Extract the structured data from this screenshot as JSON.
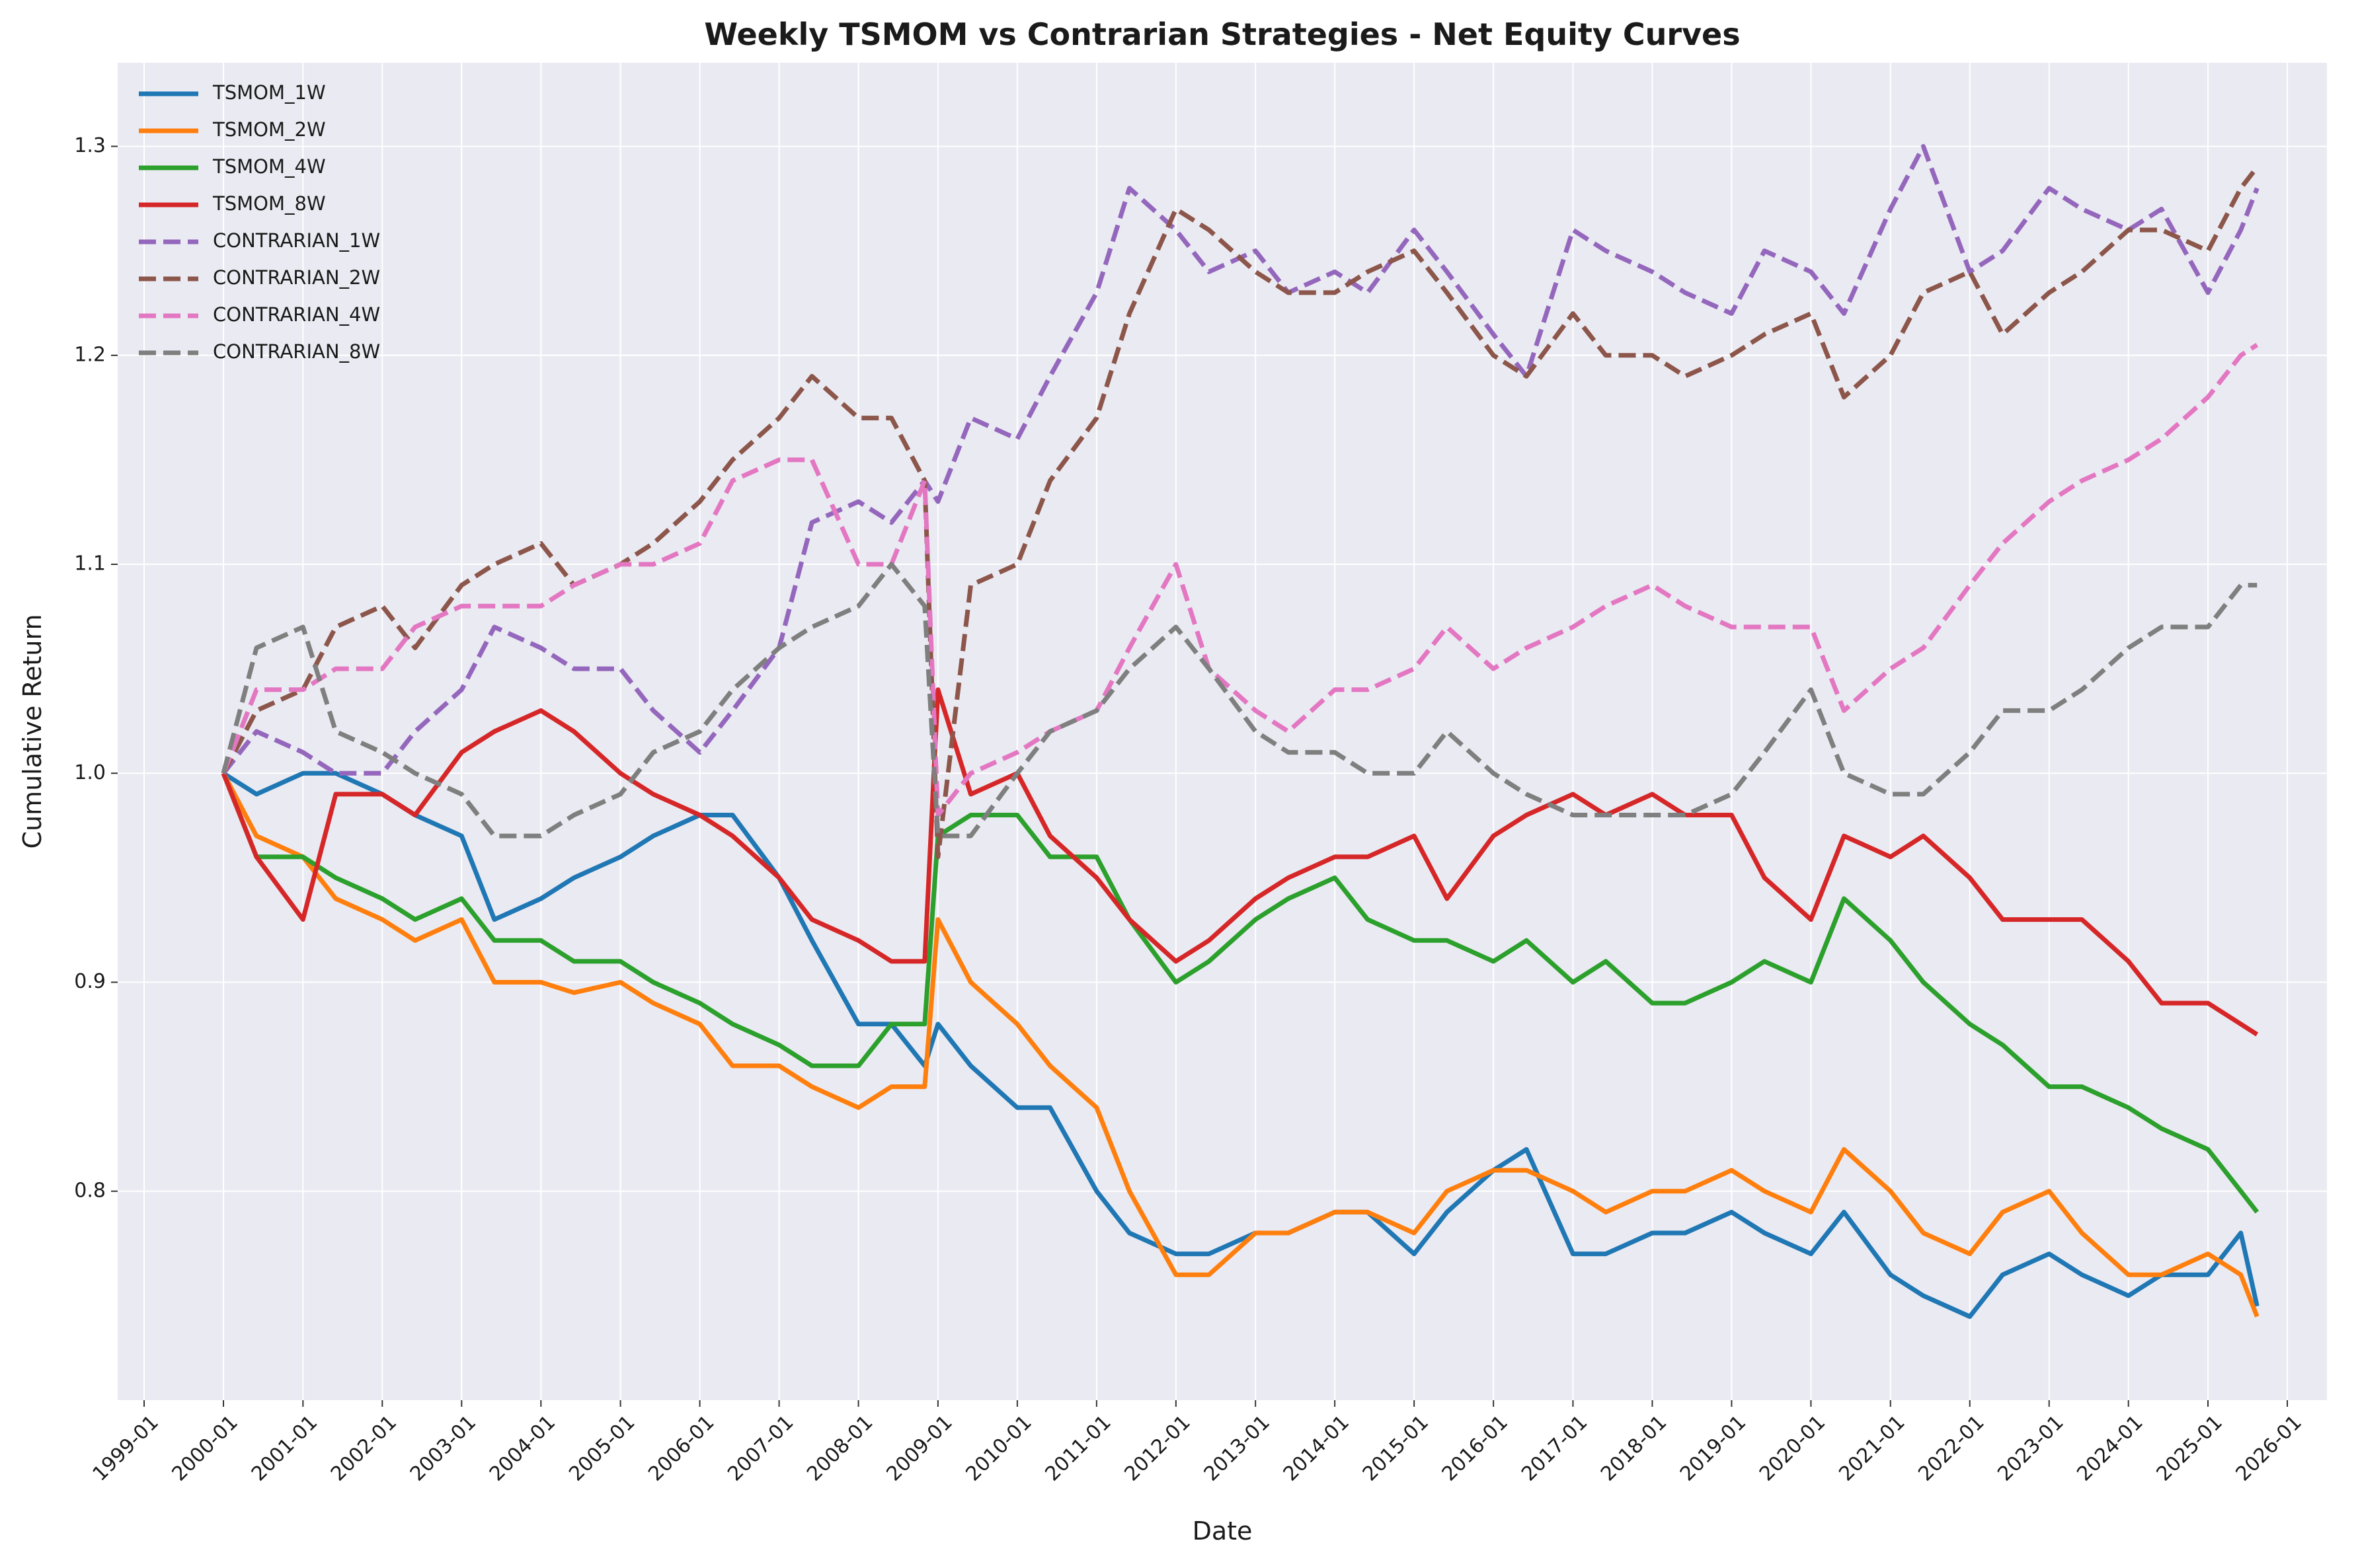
{
  "chart_data": {
    "type": "line",
    "title": "Weekly TSMOM vs Contrarian Strategies - Net Equity Curves",
    "xlabel": "Date",
    "ylabel": "Cumulative Return",
    "x_range": [
      "1999-01-01",
      "2026-01-01"
    ],
    "ylim": [
      0.7,
      1.34
    ],
    "x_ticks": [
      "1999-01",
      "2000-01",
      "2001-01",
      "2002-01",
      "2003-01",
      "2004-01",
      "2005-01",
      "2006-01",
      "2007-01",
      "2008-01",
      "2009-01",
      "2010-01",
      "2011-01",
      "2012-01",
      "2013-01",
      "2014-01",
      "2015-01",
      "2016-01",
      "2017-01",
      "2018-01",
      "2019-01",
      "2020-01",
      "2021-01",
      "2022-01",
      "2023-01",
      "2024-01",
      "2025-01",
      "2026-01"
    ],
    "y_ticks": [
      "0.8",
      "0.9",
      "1.0",
      "1.1",
      "1.2",
      "1.3"
    ],
    "grid": true,
    "legend_position": "top-left",
    "series": [
      {
        "name": "TSMOM_1W",
        "color": "#1f77b4",
        "dash": "solid",
        "x": [
          "2000-01-01",
          "2000-06-01",
          "2001-01-01",
          "2001-06-01",
          "2002-01-01",
          "2002-06-01",
          "2003-01-01",
          "2003-06-01",
          "2004-01-01",
          "2004-06-01",
          "2005-01-01",
          "2005-06-01",
          "2006-01-01",
          "2006-06-01",
          "2007-01-01",
          "2007-06-01",
          "2008-01-01",
          "2008-06-01",
          "2008-11-01",
          "2009-01-01",
          "2009-06-01",
          "2010-01-01",
          "2010-06-01",
          "2011-01-01",
          "2011-06-01",
          "2012-01-01",
          "2012-06-01",
          "2013-01-01",
          "2013-06-01",
          "2014-01-01",
          "2014-06-01",
          "2015-01-01",
          "2015-06-01",
          "2016-01-01",
          "2016-06-01",
          "2017-01-01",
          "2017-06-01",
          "2018-01-01",
          "2018-06-01",
          "2019-01-01",
          "2019-06-01",
          "2020-01-01",
          "2020-06-01",
          "2021-01-01",
          "2021-06-01",
          "2022-01-01",
          "2022-06-01",
          "2023-01-01",
          "2023-06-01",
          "2024-01-01",
          "2024-06-01",
          "2025-01-01",
          "2025-06-01",
          "2025-08-15"
        ],
        "y": [
          1.0,
          0.99,
          1.0,
          1.0,
          0.99,
          0.98,
          0.97,
          0.93,
          0.94,
          0.95,
          0.96,
          0.97,
          0.98,
          0.98,
          0.95,
          0.92,
          0.88,
          0.88,
          0.86,
          0.88,
          0.86,
          0.84,
          0.84,
          0.8,
          0.78,
          0.77,
          0.77,
          0.78,
          0.78,
          0.79,
          0.79,
          0.77,
          0.79,
          0.81,
          0.82,
          0.77,
          0.77,
          0.78,
          0.78,
          0.79,
          0.78,
          0.77,
          0.79,
          0.76,
          0.75,
          0.74,
          0.76,
          0.77,
          0.76,
          0.75,
          0.76,
          0.76,
          0.78,
          0.745
        ]
      },
      {
        "name": "TSMOM_2W",
        "color": "#ff7f0e",
        "dash": "solid",
        "x": [
          "2000-01-01",
          "2000-06-01",
          "2001-01-01",
          "2001-06-01",
          "2002-01-01",
          "2002-06-01",
          "2003-01-01",
          "2003-06-01",
          "2004-01-01",
          "2004-06-01",
          "2005-01-01",
          "2005-06-01",
          "2006-01-01",
          "2006-06-01",
          "2007-01-01",
          "2007-06-01",
          "2008-01-01",
          "2008-06-01",
          "2008-11-01",
          "2009-01-01",
          "2009-06-01",
          "2010-01-01",
          "2010-06-01",
          "2011-01-01",
          "2011-06-01",
          "2012-01-01",
          "2012-06-01",
          "2013-01-01",
          "2013-06-01",
          "2014-01-01",
          "2014-06-01",
          "2015-01-01",
          "2015-06-01",
          "2016-01-01",
          "2016-06-01",
          "2017-01-01",
          "2017-06-01",
          "2018-01-01",
          "2018-06-01",
          "2019-01-01",
          "2019-06-01",
          "2020-01-01",
          "2020-06-01",
          "2021-01-01",
          "2021-06-01",
          "2022-01-01",
          "2022-06-01",
          "2023-01-01",
          "2023-06-01",
          "2024-01-01",
          "2024-06-01",
          "2025-01-01",
          "2025-06-01",
          "2025-08-15"
        ],
        "y": [
          1.0,
          0.97,
          0.96,
          0.94,
          0.93,
          0.92,
          0.93,
          0.9,
          0.9,
          0.895,
          0.9,
          0.89,
          0.88,
          0.86,
          0.86,
          0.85,
          0.84,
          0.85,
          0.85,
          0.93,
          0.9,
          0.88,
          0.86,
          0.84,
          0.8,
          0.76,
          0.76,
          0.78,
          0.78,
          0.79,
          0.79,
          0.78,
          0.8,
          0.81,
          0.81,
          0.8,
          0.79,
          0.8,
          0.8,
          0.81,
          0.8,
          0.79,
          0.82,
          0.8,
          0.78,
          0.77,
          0.79,
          0.8,
          0.78,
          0.76,
          0.76,
          0.77,
          0.76,
          0.74
        ]
      },
      {
        "name": "TSMOM_4W",
        "color": "#2ca02c",
        "dash": "solid",
        "x": [
          "2000-01-01",
          "2000-06-01",
          "2001-01-01",
          "2001-06-01",
          "2002-01-01",
          "2002-06-01",
          "2003-01-01",
          "2003-06-01",
          "2004-01-01",
          "2004-06-01",
          "2005-01-01",
          "2005-06-01",
          "2006-01-01",
          "2006-06-01",
          "2007-01-01",
          "2007-06-01",
          "2008-01-01",
          "2008-06-01",
          "2008-11-01",
          "2009-01-01",
          "2009-06-01",
          "2010-01-01",
          "2010-06-01",
          "2011-01-01",
          "2011-06-01",
          "2012-01-01",
          "2012-06-01",
          "2013-01-01",
          "2013-06-01",
          "2014-01-01",
          "2014-06-01",
          "2015-01-01",
          "2015-06-01",
          "2016-01-01",
          "2016-06-01",
          "2017-01-01",
          "2017-06-01",
          "2018-01-01",
          "2018-06-01",
          "2019-01-01",
          "2019-06-01",
          "2020-01-01",
          "2020-06-01",
          "2021-01-01",
          "2021-06-01",
          "2022-01-01",
          "2022-06-01",
          "2023-01-01",
          "2023-06-01",
          "2024-01-01",
          "2024-06-01",
          "2025-01-01",
          "2025-06-01",
          "2025-08-15"
        ],
        "y": [
          1.0,
          0.96,
          0.96,
          0.95,
          0.94,
          0.93,
          0.94,
          0.92,
          0.92,
          0.91,
          0.91,
          0.9,
          0.89,
          0.88,
          0.87,
          0.86,
          0.86,
          0.88,
          0.88,
          0.97,
          0.98,
          0.98,
          0.96,
          0.96,
          0.93,
          0.9,
          0.91,
          0.93,
          0.94,
          0.95,
          0.93,
          0.92,
          0.92,
          0.91,
          0.92,
          0.9,
          0.91,
          0.89,
          0.89,
          0.9,
          0.91,
          0.9,
          0.94,
          0.92,
          0.9,
          0.88,
          0.87,
          0.85,
          0.85,
          0.84,
          0.83,
          0.82,
          0.8,
          0.79
        ]
      },
      {
        "name": "TSMOM_8W",
        "color": "#d62728",
        "dash": "solid",
        "x": [
          "2000-01-01",
          "2000-06-01",
          "2001-01-01",
          "2001-06-01",
          "2002-01-01",
          "2002-06-01",
          "2003-01-01",
          "2003-06-01",
          "2004-01-01",
          "2004-06-01",
          "2005-01-01",
          "2005-06-01",
          "2006-01-01",
          "2006-06-01",
          "2007-01-01",
          "2007-06-01",
          "2008-01-01",
          "2008-06-01",
          "2008-11-01",
          "2009-01-01",
          "2009-06-01",
          "2010-01-01",
          "2010-06-01",
          "2011-01-01",
          "2011-06-01",
          "2012-01-01",
          "2012-06-01",
          "2013-01-01",
          "2013-06-01",
          "2014-01-01",
          "2014-06-01",
          "2015-01-01",
          "2015-06-01",
          "2016-01-01",
          "2016-06-01",
          "2017-01-01",
          "2017-06-01",
          "2018-01-01",
          "2018-06-01",
          "2019-01-01",
          "2019-06-01",
          "2020-01-01",
          "2020-06-01",
          "2021-01-01",
          "2021-06-01",
          "2022-01-01",
          "2022-06-01",
          "2023-01-01",
          "2023-06-01",
          "2024-01-01",
          "2024-06-01",
          "2025-01-01",
          "2025-06-01",
          "2025-08-15"
        ],
        "y": [
          1.0,
          0.96,
          0.93,
          0.99,
          0.99,
          0.98,
          1.01,
          1.02,
          1.03,
          1.02,
          1.0,
          0.99,
          0.98,
          0.97,
          0.95,
          0.93,
          0.92,
          0.91,
          0.91,
          1.04,
          0.99,
          1.0,
          0.97,
          0.95,
          0.93,
          0.91,
          0.92,
          0.94,
          0.95,
          0.96,
          0.96,
          0.97,
          0.94,
          0.97,
          0.98,
          0.99,
          0.98,
          0.99,
          0.98,
          0.98,
          0.95,
          0.93,
          0.97,
          0.96,
          0.97,
          0.95,
          0.93,
          0.93,
          0.93,
          0.91,
          0.89,
          0.89,
          0.88,
          0.875
        ]
      },
      {
        "name": "CONTRARIAN_1W",
        "color": "#9467bd",
        "dash": "dashed",
        "x": [
          "2000-01-01",
          "2000-06-01",
          "2001-01-01",
          "2001-06-01",
          "2002-01-01",
          "2002-06-01",
          "2003-01-01",
          "2003-06-01",
          "2004-01-01",
          "2004-06-01",
          "2005-01-01",
          "2005-06-01",
          "2006-01-01",
          "2006-06-01",
          "2007-01-01",
          "2007-06-01",
          "2008-01-01",
          "2008-06-01",
          "2008-11-01",
          "2009-01-01",
          "2009-06-01",
          "2010-01-01",
          "2010-06-01",
          "2011-01-01",
          "2011-06-01",
          "2012-01-01",
          "2012-06-01",
          "2013-01-01",
          "2013-06-01",
          "2014-01-01",
          "2014-06-01",
          "2015-01-01",
          "2015-06-01",
          "2016-01-01",
          "2016-06-01",
          "2017-01-01",
          "2017-06-01",
          "2018-01-01",
          "2018-06-01",
          "2019-01-01",
          "2019-06-01",
          "2020-01-01",
          "2020-06-01",
          "2021-01-01",
          "2021-06-01",
          "2022-01-01",
          "2022-06-01",
          "2023-01-01",
          "2023-06-01",
          "2024-01-01",
          "2024-06-01",
          "2025-01-01",
          "2025-06-01",
          "2025-08-15"
        ],
        "y": [
          1.0,
          1.02,
          1.01,
          1.0,
          1.0,
          1.02,
          1.04,
          1.07,
          1.06,
          1.05,
          1.05,
          1.03,
          1.01,
          1.03,
          1.06,
          1.12,
          1.13,
          1.12,
          1.14,
          1.13,
          1.17,
          1.16,
          1.19,
          1.23,
          1.28,
          1.26,
          1.24,
          1.25,
          1.23,
          1.24,
          1.23,
          1.26,
          1.24,
          1.21,
          1.19,
          1.26,
          1.25,
          1.24,
          1.23,
          1.22,
          1.25,
          1.24,
          1.22,
          1.27,
          1.3,
          1.24,
          1.25,
          1.28,
          1.27,
          1.26,
          1.27,
          1.23,
          1.26,
          1.28
        ]
      },
      {
        "name": "CONTRARIAN_2W",
        "color": "#8c564b",
        "dash": "dashed",
        "x": [
          "2000-01-01",
          "2000-06-01",
          "2001-01-01",
          "2001-06-01",
          "2002-01-01",
          "2002-06-01",
          "2003-01-01",
          "2003-06-01",
          "2004-01-01",
          "2004-06-01",
          "2005-01-01",
          "2005-06-01",
          "2006-01-01",
          "2006-06-01",
          "2007-01-01",
          "2007-06-01",
          "2008-01-01",
          "2008-06-01",
          "2008-11-01",
          "2009-01-01",
          "2009-06-01",
          "2010-01-01",
          "2010-06-01",
          "2011-01-01",
          "2011-06-01",
          "2012-01-01",
          "2012-06-01",
          "2013-01-01",
          "2013-06-01",
          "2014-01-01",
          "2014-06-01",
          "2015-01-01",
          "2015-06-01",
          "2016-01-01",
          "2016-06-01",
          "2017-01-01",
          "2017-06-01",
          "2018-01-01",
          "2018-06-01",
          "2019-01-01",
          "2019-06-01",
          "2020-01-01",
          "2020-06-01",
          "2021-01-01",
          "2021-06-01",
          "2022-01-01",
          "2022-06-01",
          "2023-01-01",
          "2023-06-01",
          "2024-01-01",
          "2024-06-01",
          "2025-01-01",
          "2025-06-01",
          "2025-08-15"
        ],
        "y": [
          1.0,
          1.03,
          1.04,
          1.07,
          1.08,
          1.06,
          1.09,
          1.1,
          1.11,
          1.09,
          1.1,
          1.11,
          1.13,
          1.15,
          1.17,
          1.19,
          1.17,
          1.17,
          1.14,
          0.96,
          1.09,
          1.1,
          1.14,
          1.17,
          1.22,
          1.27,
          1.26,
          1.24,
          1.23,
          1.23,
          1.24,
          1.25,
          1.23,
          1.2,
          1.19,
          1.22,
          1.2,
          1.2,
          1.19,
          1.2,
          1.21,
          1.22,
          1.18,
          1.2,
          1.23,
          1.24,
          1.21,
          1.23,
          1.24,
          1.26,
          1.26,
          1.25,
          1.28,
          1.29
        ]
      },
      {
        "name": "CONTRARIAN_4W",
        "color": "#e377c2",
        "dash": "dashed",
        "x": [
          "2000-01-01",
          "2000-06-01",
          "2001-01-01",
          "2001-06-01",
          "2002-01-01",
          "2002-06-01",
          "2003-01-01",
          "2003-06-01",
          "2004-01-01",
          "2004-06-01",
          "2005-01-01",
          "2005-06-01",
          "2006-01-01",
          "2006-06-01",
          "2007-01-01",
          "2007-06-01",
          "2008-01-01",
          "2008-06-01",
          "2008-11-01",
          "2009-01-01",
          "2009-06-01",
          "2010-01-01",
          "2010-06-01",
          "2011-01-01",
          "2011-06-01",
          "2012-01-01",
          "2012-06-01",
          "2013-01-01",
          "2013-06-01",
          "2014-01-01",
          "2014-06-01",
          "2015-01-01",
          "2015-06-01",
          "2016-01-01",
          "2016-06-01",
          "2017-01-01",
          "2017-06-01",
          "2018-01-01",
          "2018-06-01",
          "2019-01-01",
          "2019-06-01",
          "2020-01-01",
          "2020-06-01",
          "2021-01-01",
          "2021-06-01",
          "2022-01-01",
          "2022-06-01",
          "2023-01-01",
          "2023-06-01",
          "2024-01-01",
          "2024-06-01",
          "2025-01-01",
          "2025-06-01",
          "2025-08-15"
        ],
        "y": [
          1.0,
          1.04,
          1.04,
          1.05,
          1.05,
          1.07,
          1.08,
          1.08,
          1.08,
          1.09,
          1.1,
          1.1,
          1.11,
          1.14,
          1.15,
          1.15,
          1.1,
          1.1,
          1.14,
          0.98,
          1.0,
          1.01,
          1.02,
          1.03,
          1.06,
          1.1,
          1.05,
          1.03,
          1.02,
          1.04,
          1.04,
          1.05,
          1.07,
          1.05,
          1.06,
          1.07,
          1.08,
          1.09,
          1.08,
          1.07,
          1.07,
          1.07,
          1.03,
          1.05,
          1.06,
          1.09,
          1.11,
          1.13,
          1.14,
          1.15,
          1.16,
          1.18,
          1.2,
          1.205
        ]
      },
      {
        "name": "CONTRARIAN_8W",
        "color": "#7f7f7f",
        "dash": "dashed",
        "x": [
          "2000-01-01",
          "2000-06-01",
          "2001-01-01",
          "2001-06-01",
          "2002-01-01",
          "2002-06-01",
          "2003-01-01",
          "2003-06-01",
          "2004-01-01",
          "2004-06-01",
          "2005-01-01",
          "2005-06-01",
          "2006-01-01",
          "2006-06-01",
          "2007-01-01",
          "2007-06-01",
          "2008-01-01",
          "2008-06-01",
          "2008-11-01",
          "2009-01-01",
          "2009-06-01",
          "2010-01-01",
          "2010-06-01",
          "2011-01-01",
          "2011-06-01",
          "2012-01-01",
          "2012-06-01",
          "2013-01-01",
          "2013-06-01",
          "2014-01-01",
          "2014-06-01",
          "2015-01-01",
          "2015-06-01",
          "2016-01-01",
          "2016-06-01",
          "2017-01-01",
          "2017-06-01",
          "2018-01-01",
          "2018-06-01",
          "2019-01-01",
          "2019-06-01",
          "2020-01-01",
          "2020-06-01",
          "2021-01-01",
          "2021-06-01",
          "2022-01-01",
          "2022-06-01",
          "2023-01-01",
          "2023-06-01",
          "2024-01-01",
          "2024-06-01",
          "2025-01-01",
          "2025-06-01",
          "2025-08-15"
        ],
        "y": [
          1.0,
          1.06,
          1.07,
          1.02,
          1.01,
          1.0,
          0.99,
          0.97,
          0.97,
          0.98,
          0.99,
          1.01,
          1.02,
          1.04,
          1.06,
          1.07,
          1.08,
          1.1,
          1.08,
          0.97,
          0.97,
          1.0,
          1.02,
          1.03,
          1.05,
          1.07,
          1.05,
          1.02,
          1.01,
          1.01,
          1.0,
          1.0,
          1.02,
          1.0,
          0.99,
          0.98,
          0.98,
          0.98,
          0.98,
          0.99,
          1.01,
          1.04,
          1.0,
          0.99,
          0.99,
          1.01,
          1.03,
          1.03,
          1.04,
          1.06,
          1.07,
          1.07,
          1.09,
          1.09
        ]
      }
    ]
  }
}
